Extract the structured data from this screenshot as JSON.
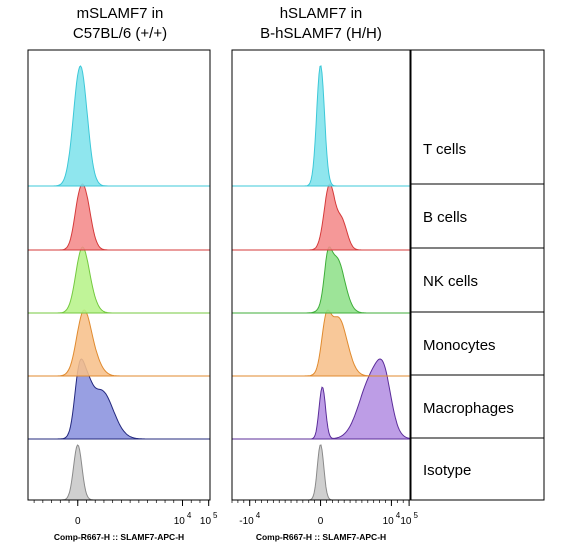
{
  "chart_data": {
    "type": "histogram-overlay",
    "panels": [
      {
        "title_line1": "mSLAMF7 in",
        "title_line2": "C57BL/6 (+/+)",
        "xlabel": "Comp-R667-H :: SLAMF7-APC-H",
        "ticks": [
          {
            "base": "0",
            "exp": "",
            "x": 0
          },
          {
            "base": "10",
            "exp": "4",
            "x": 4
          },
          {
            "base": "10",
            "exp": "5",
            "x": 5
          }
        ],
        "traces": [
          {
            "name": "T cells",
            "fill": "#7fe3ec",
            "stroke": "#3dc8d8",
            "peaks": [
              [
                0.1,
                0.26,
                1.0
              ]
            ]
          },
          {
            "name": "B cells",
            "fill": "#f48a8a",
            "stroke": "#d53a3a",
            "peaks": [
              [
                0.25,
                0.24,
                1.0
              ],
              [
                0.0,
                0.18,
                0.35
              ]
            ]
          },
          {
            "name": "NK cells",
            "fill": "#b7f28a",
            "stroke": "#74c93f",
            "peaks": [
              [
                0.15,
                0.24,
                1.0
              ],
              [
                0.45,
                0.25,
                0.25
              ]
            ]
          },
          {
            "name": "Monocytes",
            "fill": "#f7c08b",
            "stroke": "#e08a2e",
            "peaks": [
              [
                0.2,
                0.26,
                1.0
              ],
              [
                0.55,
                0.3,
                0.35
              ]
            ]
          },
          {
            "name": "Macrophages",
            "fill": "#8a92de",
            "stroke": "#23287e",
            "peaks": [
              [
                0.05,
                0.18,
                1.0
              ],
              [
                0.9,
                0.45,
                0.85
              ],
              [
                0.35,
                0.2,
                0.55
              ]
            ]
          },
          {
            "name": "Isotype",
            "fill": "#c8c8c8",
            "stroke": "#8a8a8a",
            "peaks": [
              [
                0.0,
                0.16,
                1.0
              ]
            ]
          }
        ]
      },
      {
        "title_line1": "hSLAMF7 in",
        "title_line2": "B-hSLAMF7 (H/H)",
        "xlabel": "Comp-R667-H :: SLAMF7-APC-H",
        "ticks": [
          {
            "base": "-10",
            "exp": "4",
            "x": -4
          },
          {
            "base": "0",
            "exp": "",
            "x": 0
          },
          {
            "base": "10",
            "exp": "4",
            "x": 4
          },
          {
            "base": "10",
            "exp": "5",
            "x": 5
          }
        ],
        "traces": [
          {
            "name": "T cells",
            "fill": "#7fe3ec",
            "stroke": "#3dc8d8",
            "peaks": [
              [
                0.0,
                0.22,
                1.0
              ]
            ]
          },
          {
            "name": "B cells",
            "fill": "#f48a8a",
            "stroke": "#d53a3a",
            "peaks": [
              [
                0.5,
                0.3,
                1.0
              ],
              [
                1.2,
                0.3,
                0.45
              ]
            ]
          },
          {
            "name": "NK cells",
            "fill": "#8fe08a",
            "stroke": "#3fae3a",
            "peaks": [
              [
                0.9,
                0.45,
                1.0
              ],
              [
                0.4,
                0.2,
                0.6
              ]
            ]
          },
          {
            "name": "Monocytes",
            "fill": "#f7c08b",
            "stroke": "#e08a2e",
            "peaks": [
              [
                1.0,
                0.5,
                1.0
              ],
              [
                0.3,
                0.25,
                0.7
              ]
            ]
          },
          {
            "name": "Macrophages",
            "fill": "#b48fe2",
            "stroke": "#5b2d9a",
            "peaks": [
              [
                0.1,
                0.18,
                0.85
              ],
              [
                2.9,
                0.7,
                1.0
              ],
              [
                3.6,
                0.4,
                0.6
              ]
            ]
          },
          {
            "name": "Isotype",
            "fill": "#c8c8c8",
            "stroke": "#8a8a8a",
            "peaks": [
              [
                0.0,
                0.18,
                1.0
              ]
            ]
          }
        ]
      }
    ],
    "rows": [
      "T cells",
      "B cells",
      "NK cells",
      "Monocytes",
      "Macrophages",
      "Isotype"
    ]
  }
}
